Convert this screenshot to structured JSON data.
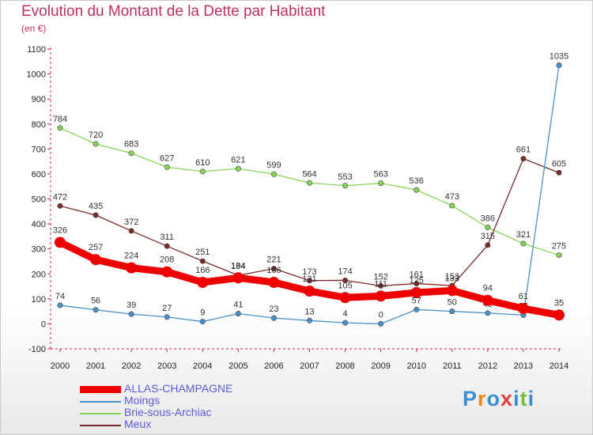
{
  "title": "Evolution du Montant de la Dette par Habitant",
  "subtitle": "(en €)",
  "brand": "Proxiti",
  "chart_data": {
    "type": "line",
    "x": [
      "2000",
      "2001",
      "2002",
      "2003",
      "2004",
      "2005",
      "2006",
      "2007",
      "2008",
      "2009",
      "2010",
      "2011",
      "2012",
      "2013",
      "2014"
    ],
    "ylim": [
      -100,
      1100
    ],
    "yticks": [
      -100,
      0,
      100,
      200,
      300,
      400,
      500,
      600,
      700,
      800,
      900,
      1000,
      1100
    ],
    "grid": false,
    "legend_position": "bottom-left",
    "series": [
      {
        "name": "Brie-sous-Archiac",
        "color": "#88d454",
        "values": [
          784,
          720,
          683,
          627,
          610,
          621,
          599,
          564,
          553,
          563,
          536,
          473,
          386,
          321,
          275
        ]
      },
      {
        "name": "Meux",
        "color": "#7a2a2a",
        "values": [
          472,
          435,
          372,
          311,
          251,
          194,
          221,
          173,
          174,
          152,
          161,
          153,
          315,
          661,
          605
        ]
      },
      {
        "name": "Moings",
        "color": "#4a90c8",
        "values": [
          74,
          56,
          39,
          27,
          9,
          41,
          23,
          13,
          4,
          0,
          57,
          50,
          43,
          35,
          1035
        ]
      },
      {
        "name": "ALLAS-CHAMPAGNE",
        "color": "#ee0000",
        "values": [
          326,
          257,
          224,
          208,
          166,
          184,
          166,
          131,
          105,
          111,
          125,
          133,
          94,
          61,
          35
        ]
      }
    ]
  }
}
